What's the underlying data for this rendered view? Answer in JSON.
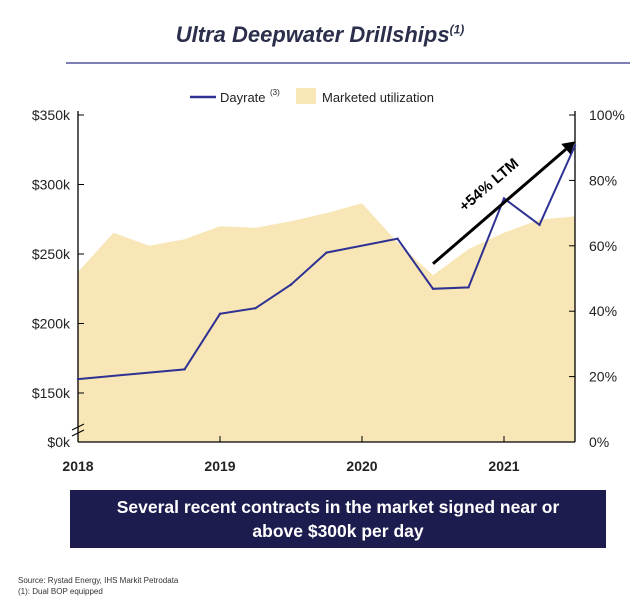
{
  "title": {
    "text": "Ultra Deepwater Drillships",
    "superscript": "(1)"
  },
  "chart_data": {
    "type": "line+area",
    "legend": {
      "placement": "top-center",
      "dayrate_label": "Dayrate",
      "dayrate_superscript": "(3)",
      "utilization_label": "Marketed utilization"
    },
    "x_ticks": [
      {
        "x": 2018,
        "label": "2018"
      },
      {
        "x": 2019,
        "label": "2019"
      },
      {
        "x": 2020,
        "label": "2020"
      },
      {
        "x": 2021,
        "label": "2021"
      }
    ],
    "y_left": {
      "ticks": [
        {
          "value": 0,
          "label": "$0k"
        },
        {
          "value": 150,
          "label": "$150k"
        },
        {
          "value": 200,
          "label": "$200k"
        },
        {
          "value": 250,
          "label": "$250k"
        },
        {
          "value": 300,
          "label": "$300k"
        },
        {
          "value": 350,
          "label": "$350k"
        }
      ],
      "axis_break": true
    },
    "y_right": {
      "range": [
        0,
        100
      ],
      "ticks": [
        {
          "value": 0,
          "label": "0%"
        },
        {
          "value": 20,
          "label": "20%"
        },
        {
          "value": 40,
          "label": "40%"
        },
        {
          "value": 60,
          "label": "60%"
        },
        {
          "value": 80,
          "label": "80%"
        },
        {
          "value": 100,
          "label": "100%"
        }
      ]
    },
    "x_range": [
      2018,
      2021.5
    ],
    "series": [
      {
        "name": "Dayrate",
        "axis": "left",
        "color": "#2e3192",
        "x": [
          2018,
          2018.75,
          2019,
          2019.25,
          2019.5,
          2019.75,
          2020.25,
          2020.5,
          2020.75,
          2021,
          2021.25,
          2021.5
        ],
        "values": [
          160,
          167,
          207,
          211,
          228,
          251,
          261,
          225,
          226,
          290,
          271,
          328
        ]
      },
      {
        "name": "Marketed utilization",
        "axis": "right",
        "color": "#f8e6b7",
        "x": [
          2018,
          2018.25,
          2018.5,
          2018.75,
          2019,
          2019.25,
          2019.5,
          2019.75,
          2020,
          2020.25,
          2020.5,
          2020.75,
          2021,
          2021.25,
          2021.5
        ],
        "values": [
          52,
          64,
          60,
          62,
          66,
          65.5,
          67.5,
          70,
          73,
          61,
          51,
          59,
          64,
          68,
          69
        ]
      }
    ],
    "annotation": {
      "text": "+54% LTM",
      "from": {
        "x": 2020.5,
        "y": 243
      },
      "to": {
        "x": 2021.5,
        "y": 331
      }
    }
  },
  "banner": {
    "line1": "Several recent contracts in the market signed near or",
    "line2": "above $300k per day"
  },
  "footnotes": {
    "source": "Source: Rystad Energy, IHS Markit Petrodata",
    "note1": "(1): Dual BOP equipped"
  }
}
